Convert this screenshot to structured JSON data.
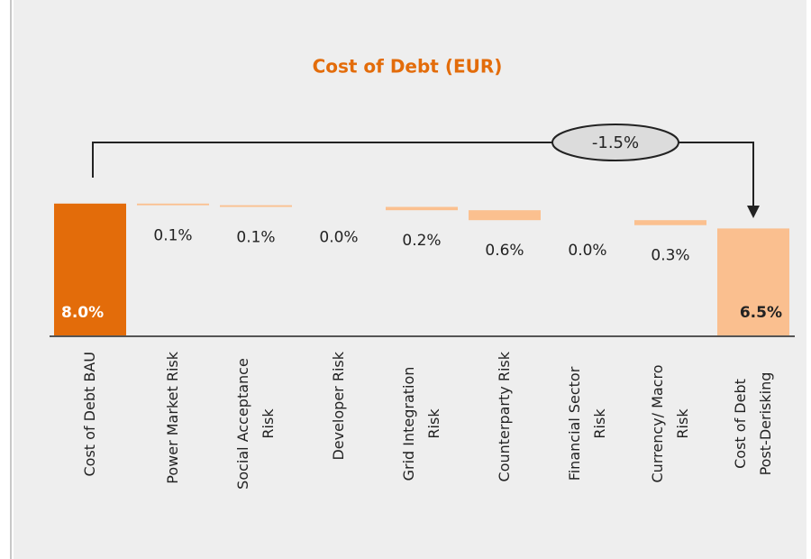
{
  "chart_data": {
    "type": "waterfall",
    "title": "Cost of Debt (EUR)",
    "categories": [
      "Cost of Debt BAU",
      "Power Market Risk",
      "Social Acceptance\nRisk",
      "Developer Risk",
      "Grid Integration\nRisk",
      "Counterparty Risk",
      "Financial Sector\nRisk",
      "Currency/ Macro\nRisk",
      "Cost of Debt\nPost-Derisking"
    ],
    "values": [
      8.0,
      0.1,
      0.1,
      0.0,
      0.2,
      0.6,
      0.0,
      0.3,
      6.5
    ],
    "value_labels": [
      "8.0%",
      "0.1%",
      "0.1%",
      "0.0%",
      "0.2%",
      "0.6%",
      "0.0%",
      "0.3%",
      "6.5%"
    ],
    "colors": {
      "start": "#e36c0a",
      "step": "#fbc08f",
      "end": "#fabf8f"
    },
    "annotation": "-1.5%"
  }
}
